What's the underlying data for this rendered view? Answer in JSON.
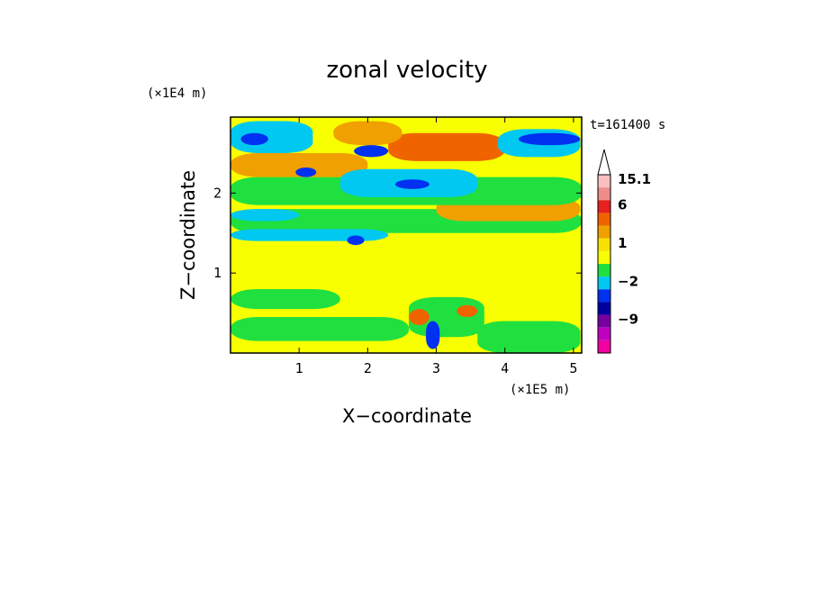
{
  "chart_data": {
    "type": "heatmap",
    "title": "zonal velocity",
    "xlabel": "X−coordinate",
    "ylabel": "Z−coordinate",
    "x_multiplier": "(×1E5 m)",
    "y_multiplier": "(×1E4 m)",
    "time_label": "t=161400 s",
    "xlim": [
      0,
      5.12
    ],
    "ylim": [
      0,
      2.95
    ],
    "xticks": [
      {
        "value": 1,
        "label": "1"
      },
      {
        "value": 2,
        "label": "2"
      },
      {
        "value": 3,
        "label": "3"
      },
      {
        "value": 4,
        "label": "4"
      },
      {
        "value": 5,
        "label": "5"
      }
    ],
    "yticks": [
      {
        "value": 1,
        "label": "1"
      },
      {
        "value": 2,
        "label": "2"
      }
    ],
    "colorbar": {
      "levels": [
        {
          "value": 15.1,
          "color": "#f8c0c0"
        },
        {
          "value": null,
          "color": "#f08c8c"
        },
        {
          "value": 6,
          "color": "#e82020"
        },
        {
          "value": null,
          "color": "#f06400"
        },
        {
          "value": null,
          "color": "#f0a000"
        },
        {
          "value": 1,
          "color": "#f8e000"
        },
        {
          "value": null,
          "color": "#f8ff00"
        },
        {
          "value": null,
          "color": "#20e040"
        },
        {
          "value": -2,
          "color": "#00c8f0"
        },
        {
          "value": null,
          "color": "#0030f0"
        },
        {
          "value": null,
          "color": "#0000a0"
        },
        {
          "value": -9,
          "color": "#7800a0"
        },
        {
          "value": null,
          "color": "#c000c0"
        },
        {
          "value": null,
          "color": "#f000a0"
        }
      ],
      "tick_labels": [
        {
          "label": "15.1",
          "index": 0
        },
        {
          "label": "6",
          "index": 2
        },
        {
          "label": "1",
          "index": 5
        },
        {
          "label": "−2",
          "index": 8
        },
        {
          "label": "−9",
          "index": 11
        }
      ],
      "extend_top": true
    },
    "background_level": "#f8ff00",
    "regions": [
      {
        "x": 0,
        "y": 0,
        "w": 5.12,
        "h": 0.85,
        "level": "#f8ff00"
      },
      {
        "x": 0,
        "y": 0.55,
        "w": 1.6,
        "h": 0.25,
        "level": "#20e040"
      },
      {
        "x": 0,
        "y": 0.15,
        "w": 2.6,
        "h": 0.3,
        "level": "#20e040"
      },
      {
        "x": 3.6,
        "y": 0.0,
        "w": 1.5,
        "h": 0.4,
        "level": "#20e040"
      },
      {
        "x": 2.6,
        "y": 0.2,
        "w": 1.1,
        "h": 0.5,
        "level": "#20e040"
      },
      {
        "x": 0,
        "y": 1.5,
        "w": 5.12,
        "h": 0.3,
        "level": "#20e040"
      },
      {
        "x": 0,
        "y": 1.4,
        "w": 2.3,
        "h": 0.15,
        "level": "#00c8f0"
      },
      {
        "x": 3.0,
        "y": 1.65,
        "w": 2.1,
        "h": 0.3,
        "level": "#f0a000"
      },
      {
        "x": 0,
        "y": 1.85,
        "w": 5.12,
        "h": 0.35,
        "level": "#20e040"
      },
      {
        "x": 0,
        "y": 2.2,
        "w": 2.0,
        "h": 0.3,
        "level": "#f0a000"
      },
      {
        "x": 1.6,
        "y": 1.95,
        "w": 2.0,
        "h": 0.35,
        "level": "#00c8f0"
      },
      {
        "x": 2.3,
        "y": 2.4,
        "w": 1.7,
        "h": 0.35,
        "level": "#f06400"
      },
      {
        "x": 0,
        "y": 2.5,
        "w": 1.2,
        "h": 0.4,
        "level": "#00c8f0"
      },
      {
        "x": 3.9,
        "y": 2.45,
        "w": 1.2,
        "h": 0.35,
        "level": "#00c8f0"
      },
      {
        "x": 1.5,
        "y": 2.6,
        "w": 1.0,
        "h": 0.3,
        "level": "#f0a000"
      },
      {
        "x": 4.2,
        "y": 2.6,
        "w": 0.9,
        "h": 0.15,
        "level": "#0030f0"
      },
      {
        "x": 0.15,
        "y": 2.6,
        "w": 0.4,
        "h": 0.15,
        "level": "#0030f0"
      },
      {
        "x": 1.8,
        "y": 2.45,
        "w": 0.5,
        "h": 0.15,
        "level": "#0030f0"
      },
      {
        "x": 2.4,
        "y": 2.05,
        "w": 0.5,
        "h": 0.12,
        "level": "#0030f0"
      },
      {
        "x": 0.95,
        "y": 2.2,
        "w": 0.3,
        "h": 0.12,
        "level": "#0030f0"
      },
      {
        "x": 1.7,
        "y": 1.35,
        "w": 0.25,
        "h": 0.12,
        "level": "#0030f0"
      },
      {
        "x": 0,
        "y": 1.65,
        "w": 1.0,
        "h": 0.15,
        "level": "#00c8f0"
      },
      {
        "x": 2.85,
        "y": 0.05,
        "w": 0.2,
        "h": 0.35,
        "level": "#0030f0"
      },
      {
        "x": 2.6,
        "y": 0.35,
        "w": 0.3,
        "h": 0.2,
        "level": "#f06400"
      },
      {
        "x": 3.3,
        "y": 0.45,
        "w": 0.3,
        "h": 0.15,
        "level": "#f06400"
      }
    ]
  }
}
